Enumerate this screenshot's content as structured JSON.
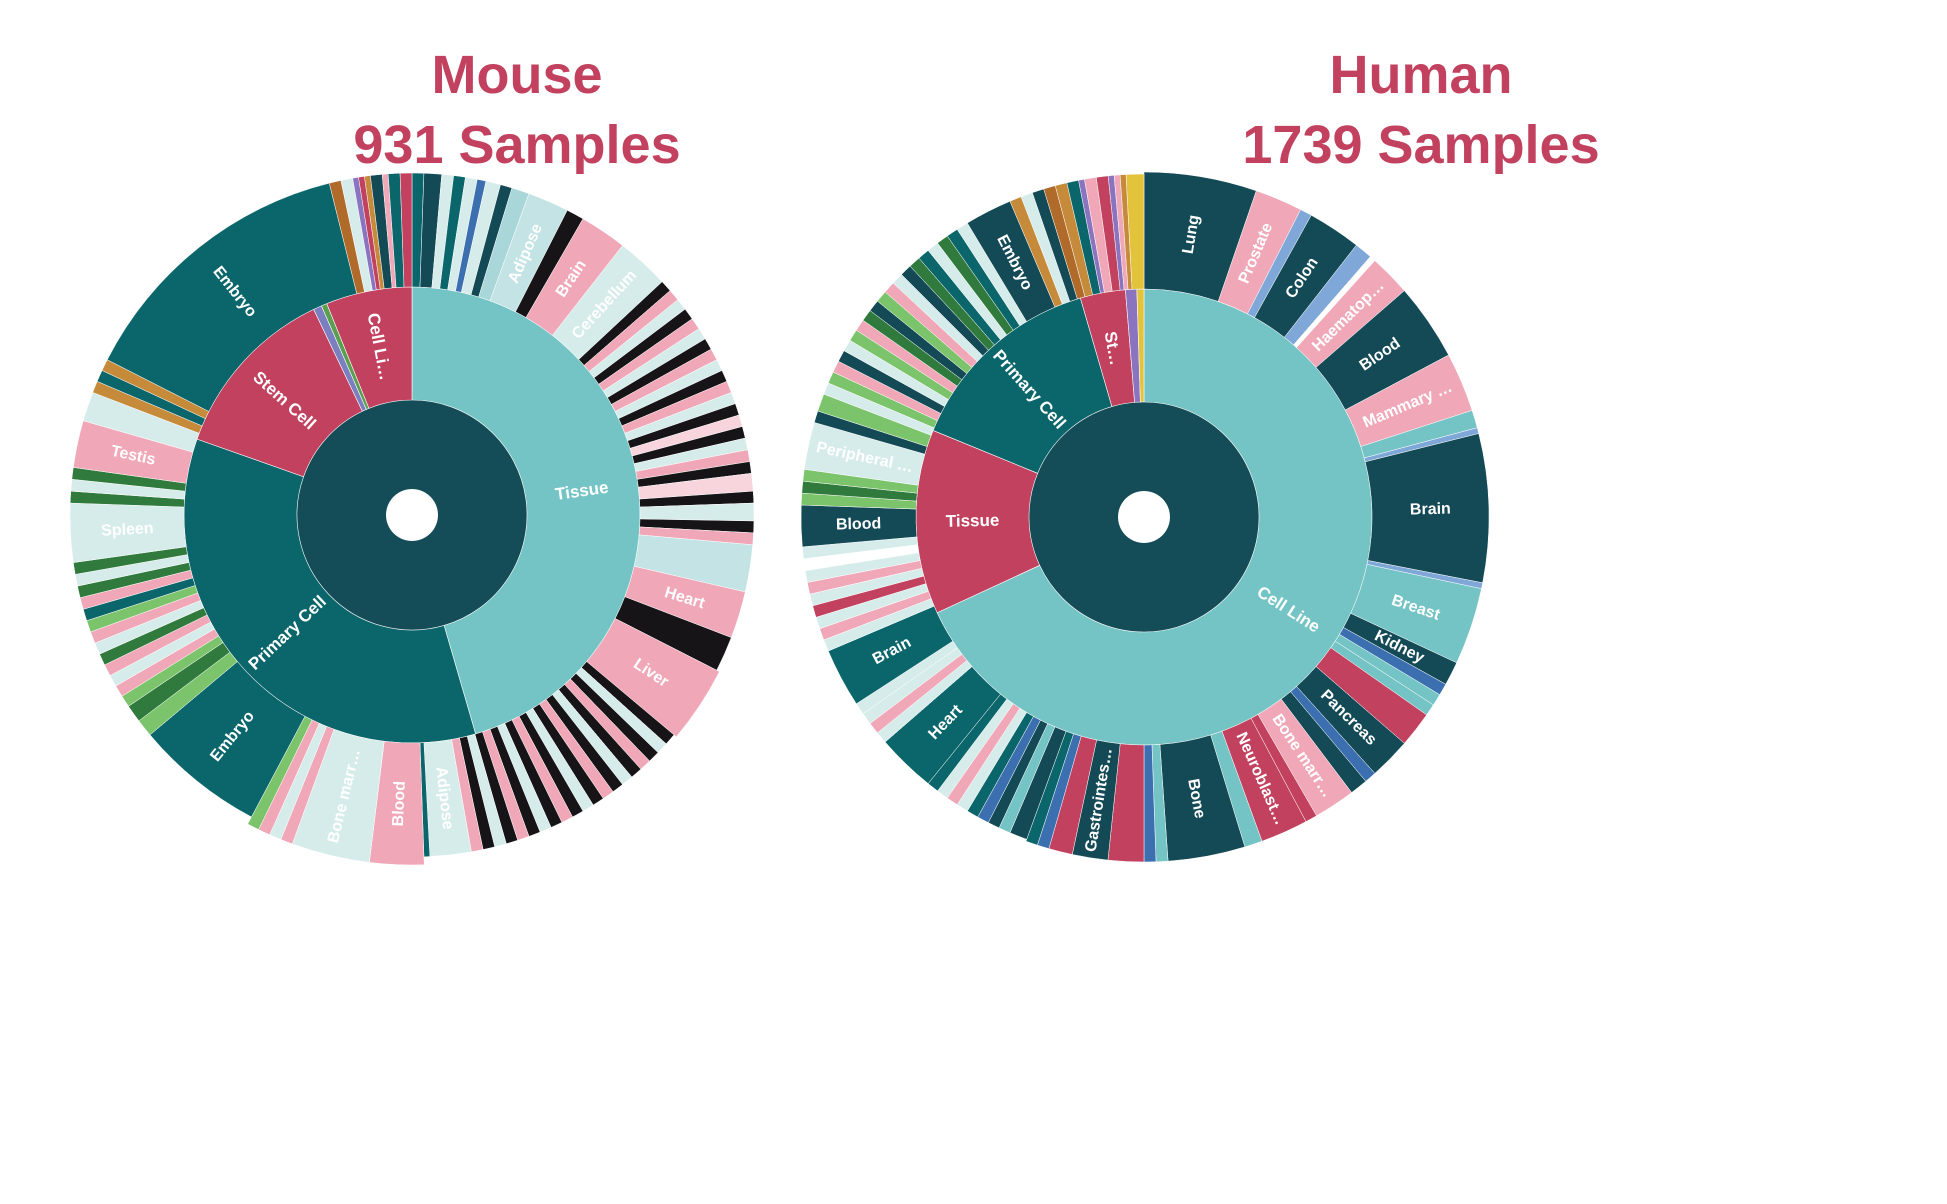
{
  "colors": {
    "title": "#c2415f",
    "root": "#144d57",
    "teal_dark": "#0b666b",
    "teal_light": "#75c4c5",
    "crimson": "#c2415f",
    "navy": "#134a56",
    "pink": "#f0a7b7",
    "pale": "#d6eceb",
    "black": "#171417"
  },
  "chart_data": [
    {
      "type": "sunburst",
      "title": "Mouse",
      "subtitle": "931 Samples",
      "inner_ring": [
        {
          "label": "Tissue",
          "fraction": 0.455,
          "color": "#75c4c5"
        },
        {
          "label": "Primary Cell",
          "fraction": 0.349,
          "color": "#0b666b"
        },
        {
          "label": "Stem Cell",
          "fraction": 0.125,
          "color": "#c2415f"
        },
        {
          "label": "",
          "fraction": 0.006,
          "color": "#7c7fbf"
        },
        {
          "label": "",
          "fraction": 0.004,
          "color": "#5a9e4f"
        },
        {
          "label": "Cell Li…",
          "fraction": 0.061,
          "color": "#c2415f"
        }
      ],
      "outer_labels": [
        {
          "label": "Adipose"
        },
        {
          "label": "Brain"
        },
        {
          "label": "Cerebellum"
        },
        {
          "label": "Heart"
        },
        {
          "label": "Liver"
        },
        {
          "label": "Adipose"
        },
        {
          "label": "Blood"
        },
        {
          "label": "Bone marr…"
        },
        {
          "label": "Embryo"
        },
        {
          "label": "Spleen"
        },
        {
          "label": "Testis"
        },
        {
          "label": "Embryo"
        }
      ]
    },
    {
      "type": "sunburst",
      "title": "Human",
      "subtitle": "1739 Samples",
      "inner_ring": [
        {
          "label": "Cell Line",
          "fraction": 0.681,
          "color": "#75c4c5"
        },
        {
          "label": "Tissue",
          "fraction": 0.131,
          "color": "#c2415f"
        },
        {
          "label": "Primary Cell",
          "fraction": 0.143,
          "color": "#0b666b"
        },
        {
          "label": "St…",
          "fraction": 0.032,
          "color": "#c2415f"
        },
        {
          "label": "",
          "fraction": 0.008,
          "color": "#8a74c0"
        },
        {
          "label": "",
          "fraction": 0.005,
          "color": "#e3c33c"
        }
      ],
      "outer_labels": [
        {
          "label": "Lung"
        },
        {
          "label": "Prostate"
        },
        {
          "label": "Colon"
        },
        {
          "label": "Haematop…"
        },
        {
          "label": "Blood"
        },
        {
          "label": "Mammary …"
        },
        {
          "label": "Brain"
        },
        {
          "label": "Breast"
        },
        {
          "label": "Kidney"
        },
        {
          "label": "Pancreas"
        },
        {
          "label": "Bone marr…"
        },
        {
          "label": "Neuroblast…"
        },
        {
          "label": "Bone"
        },
        {
          "label": "Gastrointes…"
        },
        {
          "label": "Heart"
        },
        {
          "label": "Brain"
        },
        {
          "label": "Blood"
        },
        {
          "label": "Peripheral …"
        },
        {
          "label": "Embryo"
        }
      ]
    }
  ]
}
